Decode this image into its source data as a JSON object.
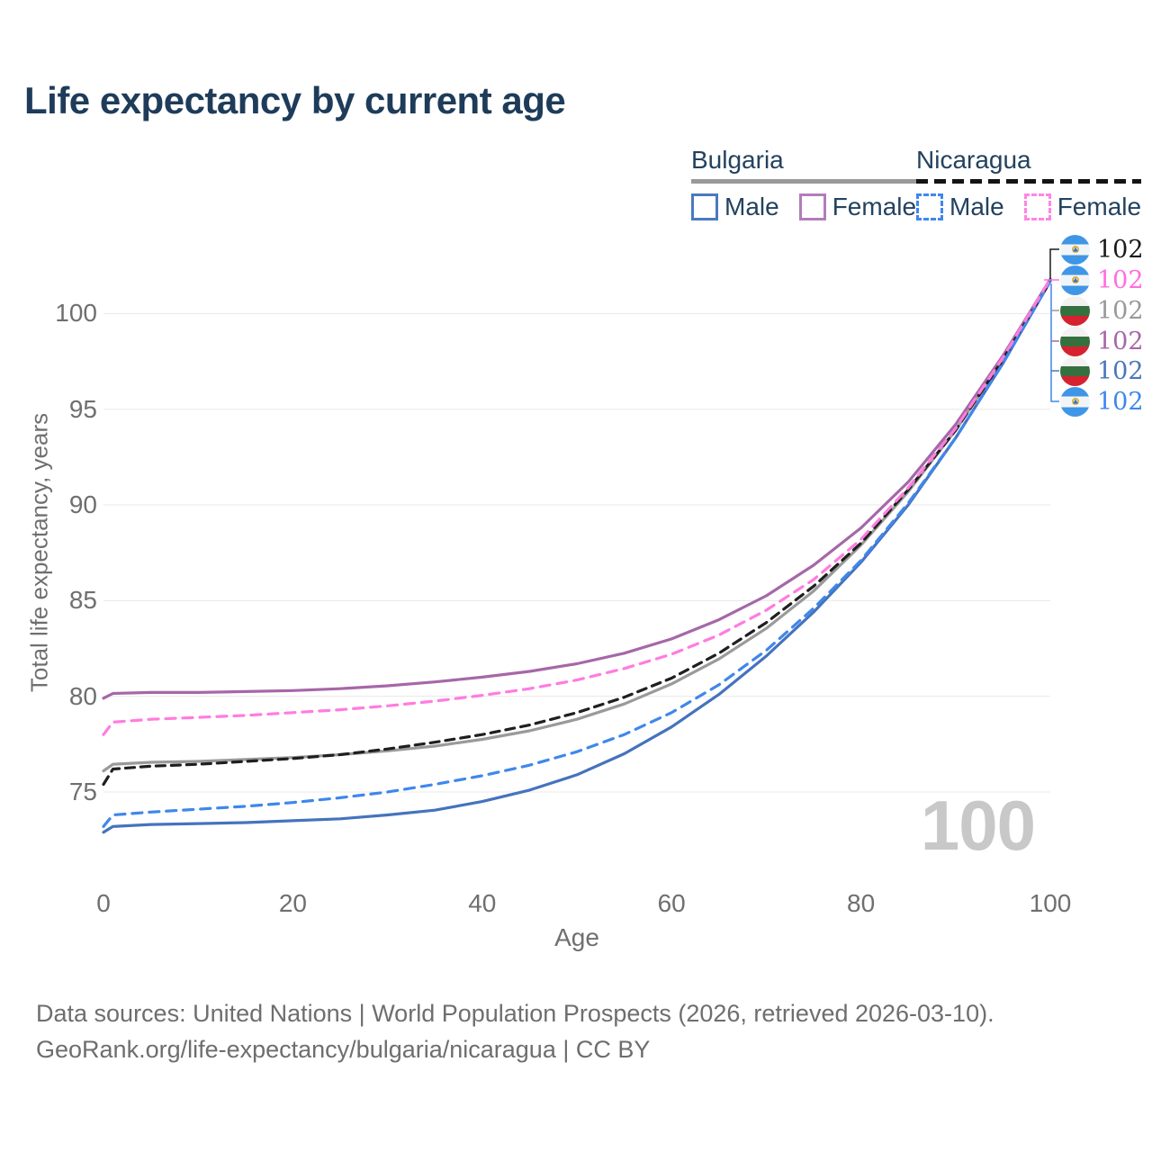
{
  "title": "Life expectancy by current age",
  "watermark_age": "100",
  "legend": {
    "groups": [
      {
        "country": "Bulgaria",
        "line_style": "solid",
        "underline_color": "#9a9a9a",
        "items": [
          {
            "label": "Male",
            "color": "#4a79c0",
            "dashed": false
          },
          {
            "label": "Female",
            "color": "#b27cba",
            "dashed": false
          }
        ]
      },
      {
        "country": "Nicaragua",
        "line_style": "dashed",
        "underline_color": "#141414",
        "items": [
          {
            "label": "Male",
            "color": "#3f87ec",
            "dashed": true
          },
          {
            "label": "Female",
            "color": "#ff85e6",
            "dashed": true
          }
        ]
      }
    ]
  },
  "axes": {
    "x": {
      "label": "Age",
      "ticks": [
        0,
        20,
        40,
        60,
        80,
        100
      ],
      "range": [
        0,
        100
      ]
    },
    "y": {
      "label": "Total life expectancy, years",
      "ticks": [
        75,
        80,
        85,
        90,
        95,
        100
      ],
      "range": [
        71.5,
        103
      ],
      "grid": true
    }
  },
  "end_labels": [
    {
      "flag": "Nicaragua",
      "value": "102",
      "color": "#1a1a1a",
      "series": "Nicaragua"
    },
    {
      "flag": "Nicaragua",
      "value": "102",
      "color": "#ff6ee0",
      "series": "Nicaragua Female"
    },
    {
      "flag": "Bulgaria",
      "value": "102",
      "color": "#999999",
      "series": "Bulgaria"
    },
    {
      "flag": "Bulgaria",
      "value": "102",
      "color": "#a667a8",
      "series": "Bulgaria Female"
    },
    {
      "flag": "Bulgaria",
      "value": "102",
      "color": "#4a77bb",
      "series": "Bulgaria Male"
    },
    {
      "flag": "Nicaragua",
      "value": "102",
      "color": "#3f87ec",
      "series": "Nicaragua Male"
    }
  ],
  "footer": {
    "line1": "Data sources: United Nations | World Population Prospects (2026, retrieved 2026-03-10).",
    "line2": "GeoRank.org/life-expectancy/bulgaria/nicaragua | CC BY"
  },
  "colors": {
    "title": "#1e3c5a",
    "axis_text": "#6f6f6f",
    "gridline": "#e8e8e8",
    "watermark": "#c8c8c8",
    "footer_text": "#6e6e6e"
  },
  "chart_data": {
    "type": "line",
    "title": "Life expectancy by current age",
    "xlabel": "Age",
    "ylabel": "Total life expectancy, years",
    "xlim": [
      0,
      100
    ],
    "ylim": [
      71.5,
      103
    ],
    "legend_position": "top-right",
    "grid": "horizontal",
    "x": [
      0,
      1,
      5,
      10,
      15,
      20,
      25,
      30,
      35,
      40,
      45,
      50,
      55,
      60,
      65,
      70,
      75,
      80,
      85,
      90,
      95,
      100
    ],
    "series": [
      {
        "name": "Bulgaria",
        "sex": "both",
        "color": "#9a9a9a",
        "dash": "solid",
        "values": [
          76.1,
          76.45,
          76.55,
          76.6,
          76.7,
          76.8,
          76.95,
          77.15,
          77.4,
          77.75,
          78.2,
          78.8,
          79.6,
          80.65,
          81.95,
          83.55,
          85.5,
          87.9,
          90.7,
          93.9,
          97.6,
          101.7
        ]
      },
      {
        "name": "Bulgaria Female",
        "sex": "female",
        "color": "#a667a8",
        "dash": "solid",
        "values": [
          79.9,
          80.15,
          80.2,
          80.2,
          80.25,
          80.3,
          80.4,
          80.55,
          80.75,
          81.0,
          81.3,
          81.7,
          82.25,
          83.0,
          84.0,
          85.25,
          86.85,
          88.8,
          91.2,
          94.2,
          97.8,
          101.8
        ]
      },
      {
        "name": "Bulgaria Male",
        "sex": "male",
        "color": "#4573bd",
        "dash": "solid",
        "values": [
          72.9,
          73.2,
          73.3,
          73.35,
          73.4,
          73.5,
          73.6,
          73.8,
          74.05,
          74.5,
          75.1,
          75.9,
          77.0,
          78.4,
          80.1,
          82.1,
          84.4,
          87.0,
          90.0,
          93.5,
          97.4,
          101.7
        ]
      },
      {
        "name": "Nicaragua",
        "sex": "both",
        "color": "#1f1f1f",
        "dash": "dashed",
        "values": [
          75.4,
          76.2,
          76.35,
          76.45,
          76.6,
          76.75,
          76.95,
          77.25,
          77.6,
          78.0,
          78.5,
          79.15,
          79.95,
          80.95,
          82.25,
          83.85,
          85.75,
          88.0,
          90.8,
          93.9,
          97.6,
          101.7
        ]
      },
      {
        "name": "Nicaragua Male",
        "sex": "male",
        "color": "#3f87ec",
        "dash": "dashed",
        "values": [
          73.2,
          73.8,
          73.95,
          74.1,
          74.25,
          74.45,
          74.7,
          75.0,
          75.4,
          75.85,
          76.4,
          77.1,
          78.0,
          79.15,
          80.6,
          82.4,
          84.6,
          87.1,
          90.1,
          93.5,
          97.4,
          101.7
        ]
      },
      {
        "name": "Nicaragua Female",
        "sex": "female",
        "color": "#ff7ce0",
        "dash": "dashed",
        "values": [
          78.0,
          78.65,
          78.8,
          78.9,
          79.0,
          79.15,
          79.3,
          79.5,
          79.75,
          80.05,
          80.4,
          80.85,
          81.45,
          82.2,
          83.2,
          84.5,
          86.1,
          88.2,
          90.9,
          94.0,
          97.7,
          101.8
        ]
      }
    ],
    "end_value_labels": [
      102,
      102,
      102,
      102,
      102,
      102
    ]
  }
}
